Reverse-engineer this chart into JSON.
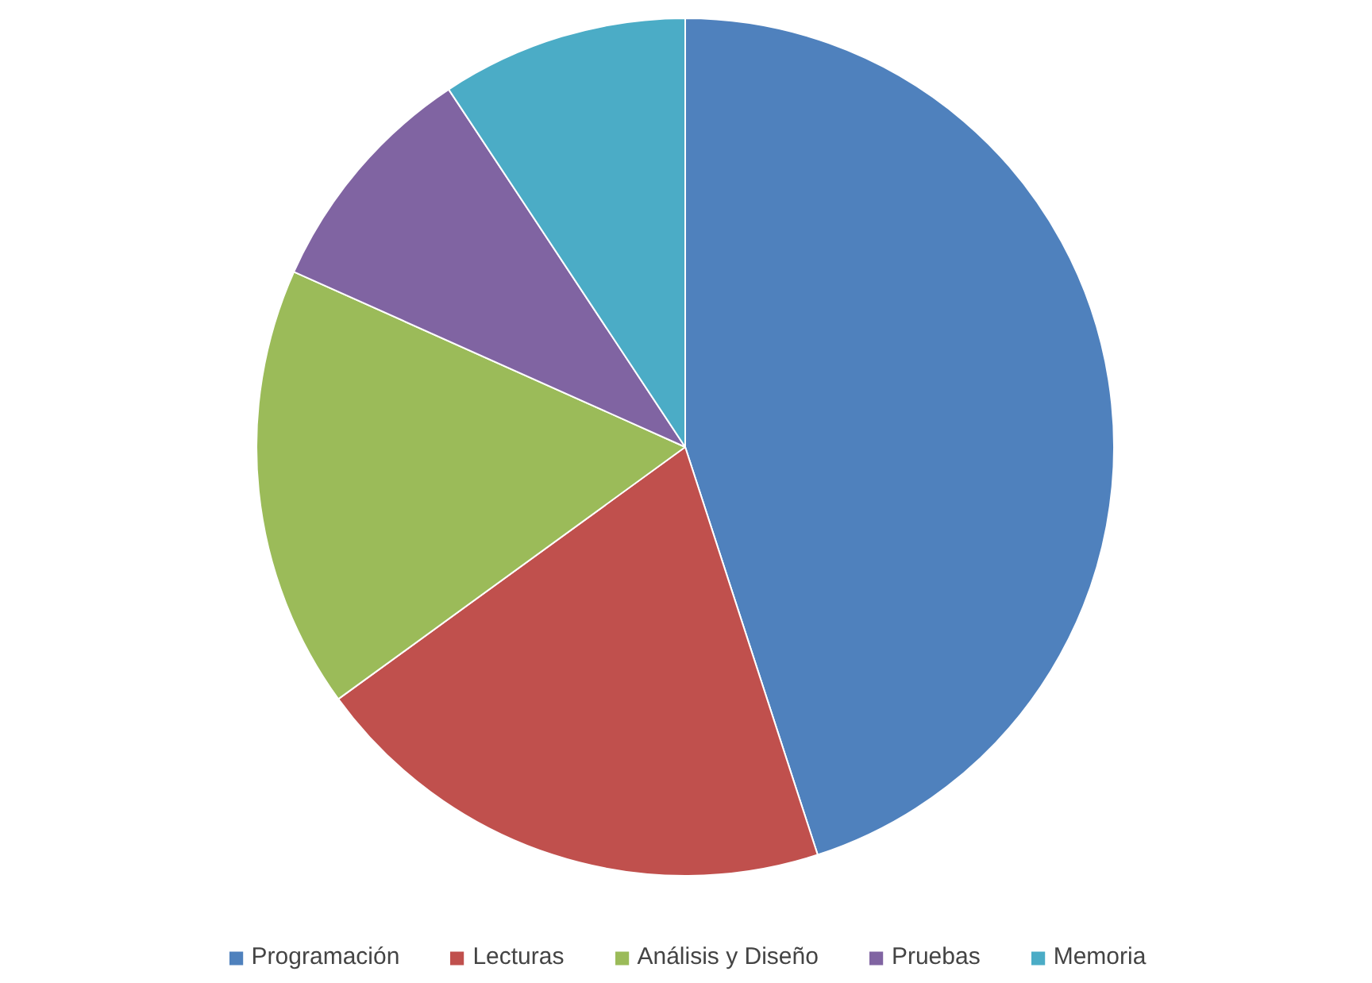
{
  "chart_data": {
    "type": "pie",
    "categories": [
      "Programación",
      "Lecturas",
      "Análisis y Diseño",
      "Pruebas",
      "Memoria"
    ],
    "values": [
      45,
      20,
      16.7,
      9,
      9.3
    ],
    "colors": [
      "#4f81bd",
      "#c0504d",
      "#9bbb59",
      "#8064a2",
      "#4bacc6"
    ],
    "legend": "bottom"
  }
}
